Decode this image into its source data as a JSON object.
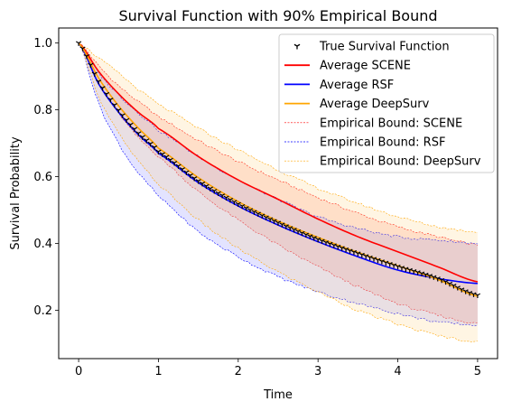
{
  "chart_data": {
    "type": "line",
    "title": "Survival Function with 90% Empirical Bound",
    "xlabel": "Time",
    "ylabel": "Survival Probability",
    "xlim": [
      -0.25,
      5.25
    ],
    "ylim": [
      0.055,
      1.045
    ],
    "xticks": [
      0,
      1,
      2,
      3,
      4,
      5
    ],
    "yticks": [
      0.2,
      0.4,
      0.6,
      0.8,
      1.0
    ],
    "xtick_labels": [
      "0",
      "1",
      "2",
      "3",
      "4",
      "5"
    ],
    "ytick_labels": [
      "0.2",
      "0.4",
      "0.6",
      "0.8",
      "1.0"
    ],
    "grid": false,
    "legend_position": "top-right",
    "x": [
      0,
      0.25,
      0.5,
      0.75,
      1,
      1.5,
      2,
      2.5,
      3,
      3.5,
      4,
      4.5,
      5
    ],
    "series": [
      {
        "name": "True Survival Function",
        "style": "marker",
        "color": "#000000",
        "values": [
          1.0,
          0.885,
          0.799,
          0.73,
          0.675,
          0.587,
          0.518,
          0.462,
          0.412,
          0.37,
          0.331,
          0.295,
          0.245
        ]
      },
      {
        "name": "Average SCENE",
        "style": "line",
        "color": "#ff0000",
        "values": [
          1.0,
          0.915,
          0.848,
          0.792,
          0.744,
          0.66,
          0.59,
          0.532,
          0.473,
          0.42,
          0.375,
          0.33,
          0.285
        ]
      },
      {
        "name": "Average RSF",
        "style": "line",
        "color": "#0000ff",
        "values": [
          1.0,
          0.878,
          0.793,
          0.725,
          0.67,
          0.582,
          0.512,
          0.455,
          0.405,
          0.36,
          0.32,
          0.295,
          0.28
        ]
      },
      {
        "name": "Average DeepSurv",
        "style": "line",
        "color": "#ffa500",
        "values": [
          1.0,
          0.895,
          0.812,
          0.745,
          0.685,
          0.597,
          0.525,
          0.467,
          0.418,
          0.373,
          0.333,
          0.292,
          0.242
        ]
      }
    ],
    "bounds": [
      {
        "name": "Empirical Bound: SCENE",
        "color": "#ff0000",
        "fill": "#ff7f66",
        "upper": [
          1.0,
          0.932,
          0.872,
          0.824,
          0.778,
          0.708,
          0.645,
          0.59,
          0.537,
          0.49,
          0.45,
          0.42,
          0.395
        ],
        "lower": [
          1.0,
          0.88,
          0.79,
          0.715,
          0.658,
          0.555,
          0.47,
          0.395,
          0.33,
          0.27,
          0.22,
          0.185,
          0.16
        ]
      },
      {
        "name": "Empirical Bound: RSF",
        "color": "#0000ff",
        "fill": "#7f7fff",
        "upper": [
          1.0,
          0.91,
          0.845,
          0.79,
          0.738,
          0.66,
          0.59,
          0.532,
          0.48,
          0.445,
          0.42,
          0.41,
          0.4
        ],
        "lower": [
          1.0,
          0.82,
          0.7,
          0.61,
          0.54,
          0.435,
          0.36,
          0.3,
          0.255,
          0.22,
          0.19,
          0.165,
          0.155
        ]
      },
      {
        "name": "Empirical Bound: DeepSurv",
        "color": "#ffa500",
        "fill": "#ffd27f",
        "upper": [
          1.0,
          0.955,
          0.91,
          0.86,
          0.815,
          0.745,
          0.68,
          0.62,
          0.565,
          0.52,
          0.48,
          0.45,
          0.435
        ],
        "lower": [
          1.0,
          0.84,
          0.73,
          0.645,
          0.575,
          0.47,
          0.385,
          0.315,
          0.255,
          0.2,
          0.158,
          0.125,
          0.105
        ]
      }
    ],
    "legend": [
      {
        "label": "True Survival Function",
        "kind": "marker",
        "color": "#000000"
      },
      {
        "label": "Average SCENE",
        "kind": "line",
        "color": "#ff0000"
      },
      {
        "label": "Average RSF",
        "kind": "line",
        "color": "#0000ff"
      },
      {
        "label": "Average DeepSurv",
        "kind": "line",
        "color": "#ffa500"
      },
      {
        "label": "Empirical Bound: SCENE",
        "kind": "dashed",
        "color": "#ff0000"
      },
      {
        "label": "Empirical Bound: RSF",
        "kind": "dashed",
        "color": "#0000ff"
      },
      {
        "label": "Empirical Bound: DeepSurv",
        "kind": "dashed",
        "color": "#ffa500"
      }
    ]
  }
}
